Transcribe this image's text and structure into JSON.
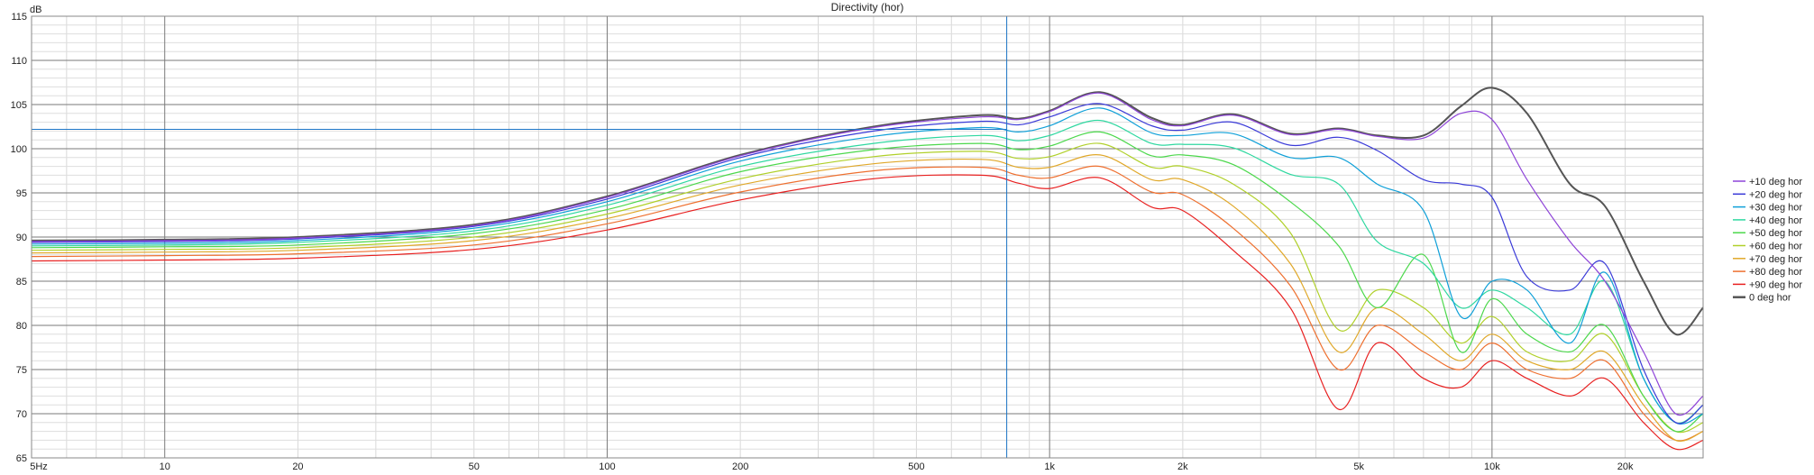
{
  "chart_data": {
    "type": "line",
    "title": "Directivity (hor)",
    "ylabel": "dB",
    "xlabel": "",
    "xscale": "log",
    "xlim": [
      5,
      30000
    ],
    "ylim": [
      65,
      115
    ],
    "y_ticks": [
      65,
      70,
      75,
      80,
      85,
      90,
      95,
      100,
      105,
      110,
      115
    ],
    "x_ticks": [
      {
        "value": 5,
        "label": "5Hz"
      },
      {
        "value": 10,
        "label": "10"
      },
      {
        "value": 20,
        "label": "20"
      },
      {
        "value": 50,
        "label": "50"
      },
      {
        "value": 100,
        "label": "100"
      },
      {
        "value": 200,
        "label": "200"
      },
      {
        "value": 500,
        "label": "500"
      },
      {
        "value": 1000,
        "label": "1k"
      },
      {
        "value": 2000,
        "label": "2k"
      },
      {
        "value": 5000,
        "label": "5k"
      },
      {
        "value": 10000,
        "label": "10k"
      },
      {
        "value": 20000,
        "label": "20k"
      }
    ],
    "grid": true,
    "legend_position": "right",
    "cursor": {
      "x": 800,
      "y": 102.2,
      "color": "#1f77c8"
    },
    "x": [
      5,
      10,
      20,
      50,
      100,
      200,
      400,
      700,
      850,
      1000,
      1300,
      1700,
      2000,
      2600,
      3500,
      4500,
      5500,
      7000,
      8500,
      10000,
      12000,
      15000,
      18000,
      22000,
      26000,
      30000
    ],
    "series": [
      {
        "name": "+10 deg hor",
        "color": "#8e44d8",
        "values": [
          89.5,
          89.6,
          89.9,
          91.3,
          94.5,
          99.2,
          102.4,
          103.6,
          103.3,
          104.2,
          106.3,
          103.3,
          102.6,
          103.8,
          101.6,
          102.2,
          101.4,
          101.2,
          104.0,
          103.3,
          96.5,
          89.5,
          85.0,
          77.0,
          70.0,
          72.0
        ]
      },
      {
        "name": "+20 deg hor",
        "color": "#3a3ad8",
        "values": [
          89.4,
          89.5,
          89.8,
          91.2,
          94.3,
          99.0,
          102.0,
          103.1,
          102.7,
          103.6,
          105.1,
          102.6,
          102.1,
          103.0,
          100.4,
          101.3,
          99.8,
          96.5,
          96.0,
          94.5,
          85.5,
          84.0,
          87.0,
          75.0,
          69.0,
          71.0
        ]
      },
      {
        "name": "+30 deg hor",
        "color": "#0fa0d8",
        "values": [
          89.2,
          89.3,
          89.6,
          91.0,
          94.0,
          98.6,
          101.4,
          102.4,
          101.9,
          102.6,
          104.6,
          101.8,
          101.5,
          101.7,
          99.0,
          99.0,
          96.0,
          93.0,
          81.0,
          85.0,
          84.0,
          78.0,
          86.0,
          74.0,
          69.0,
          70.0
        ]
      },
      {
        "name": "+40 deg hor",
        "color": "#2fd8a0",
        "values": [
          89.0,
          89.1,
          89.4,
          90.7,
          93.6,
          98.0,
          100.6,
          101.5,
          100.9,
          101.5,
          103.2,
          100.6,
          100.5,
          100.1,
          97.1,
          96.0,
          89.5,
          87.0,
          82.0,
          84.0,
          82.0,
          79.0,
          85.0,
          74.0,
          69.0,
          71.0
        ]
      },
      {
        "name": "+50 deg hor",
        "color": "#4cd84c",
        "values": [
          88.8,
          88.9,
          89.1,
          90.4,
          93.1,
          97.4,
          99.9,
          100.6,
          99.9,
          100.3,
          101.9,
          99.2,
          99.3,
          98.2,
          94.0,
          89.0,
          82.0,
          88.0,
          77.0,
          83.0,
          79.0,
          77.0,
          80.0,
          72.0,
          68.0,
          70.0
        ]
      },
      {
        "name": "+60 deg hor",
        "color": "#b0d02a",
        "values": [
          88.5,
          88.6,
          88.8,
          90.0,
          92.6,
          96.6,
          99.1,
          99.7,
          98.9,
          99.1,
          100.6,
          97.9,
          98.0,
          96.0,
          90.5,
          79.5,
          84.0,
          82.0,
          78.0,
          81.0,
          77.0,
          76.0,
          79.0,
          72.0,
          68.0,
          69.0
        ]
      },
      {
        "name": "+70 deg hor",
        "color": "#e0a82a",
        "values": [
          88.2,
          88.3,
          88.5,
          89.6,
          92.1,
          95.9,
          98.3,
          98.8,
          97.9,
          97.9,
          99.3,
          96.5,
          96.5,
          93.5,
          87.0,
          77.0,
          82.0,
          79.0,
          76.0,
          79.0,
          76.0,
          75.0,
          77.0,
          71.0,
          67.0,
          68.0
        ]
      },
      {
        "name": "+80 deg hor",
        "color": "#ee7030",
        "values": [
          87.8,
          87.9,
          88.1,
          89.1,
          91.5,
          95.1,
          97.5,
          97.9,
          97.0,
          96.7,
          98.0,
          95.1,
          94.8,
          91.0,
          84.5,
          75.0,
          80.0,
          77.0,
          75.0,
          78.0,
          75.0,
          74.0,
          76.0,
          70.0,
          67.0,
          68.0
        ]
      },
      {
        "name": "+90 deg hor",
        "color": "#e82020",
        "values": [
          87.3,
          87.4,
          87.6,
          88.6,
          90.8,
          94.2,
          96.6,
          97.0,
          96.1,
          95.5,
          96.7,
          93.4,
          93.0,
          88.5,
          82.0,
          70.5,
          78.0,
          74.0,
          73.0,
          76.0,
          74.0,
          72.0,
          74.0,
          69.0,
          66.0,
          67.0
        ]
      },
      {
        "name": "0 deg hor",
        "color": "#555555",
        "values": [
          89.6,
          89.7,
          90.0,
          91.4,
          94.6,
          99.3,
          102.5,
          103.8,
          103.4,
          104.3,
          106.4,
          103.5,
          102.7,
          103.9,
          101.7,
          102.3,
          101.5,
          101.5,
          104.8,
          106.9,
          104.0,
          96.0,
          93.5,
          85.0,
          79.0,
          82.0
        ]
      }
    ]
  }
}
